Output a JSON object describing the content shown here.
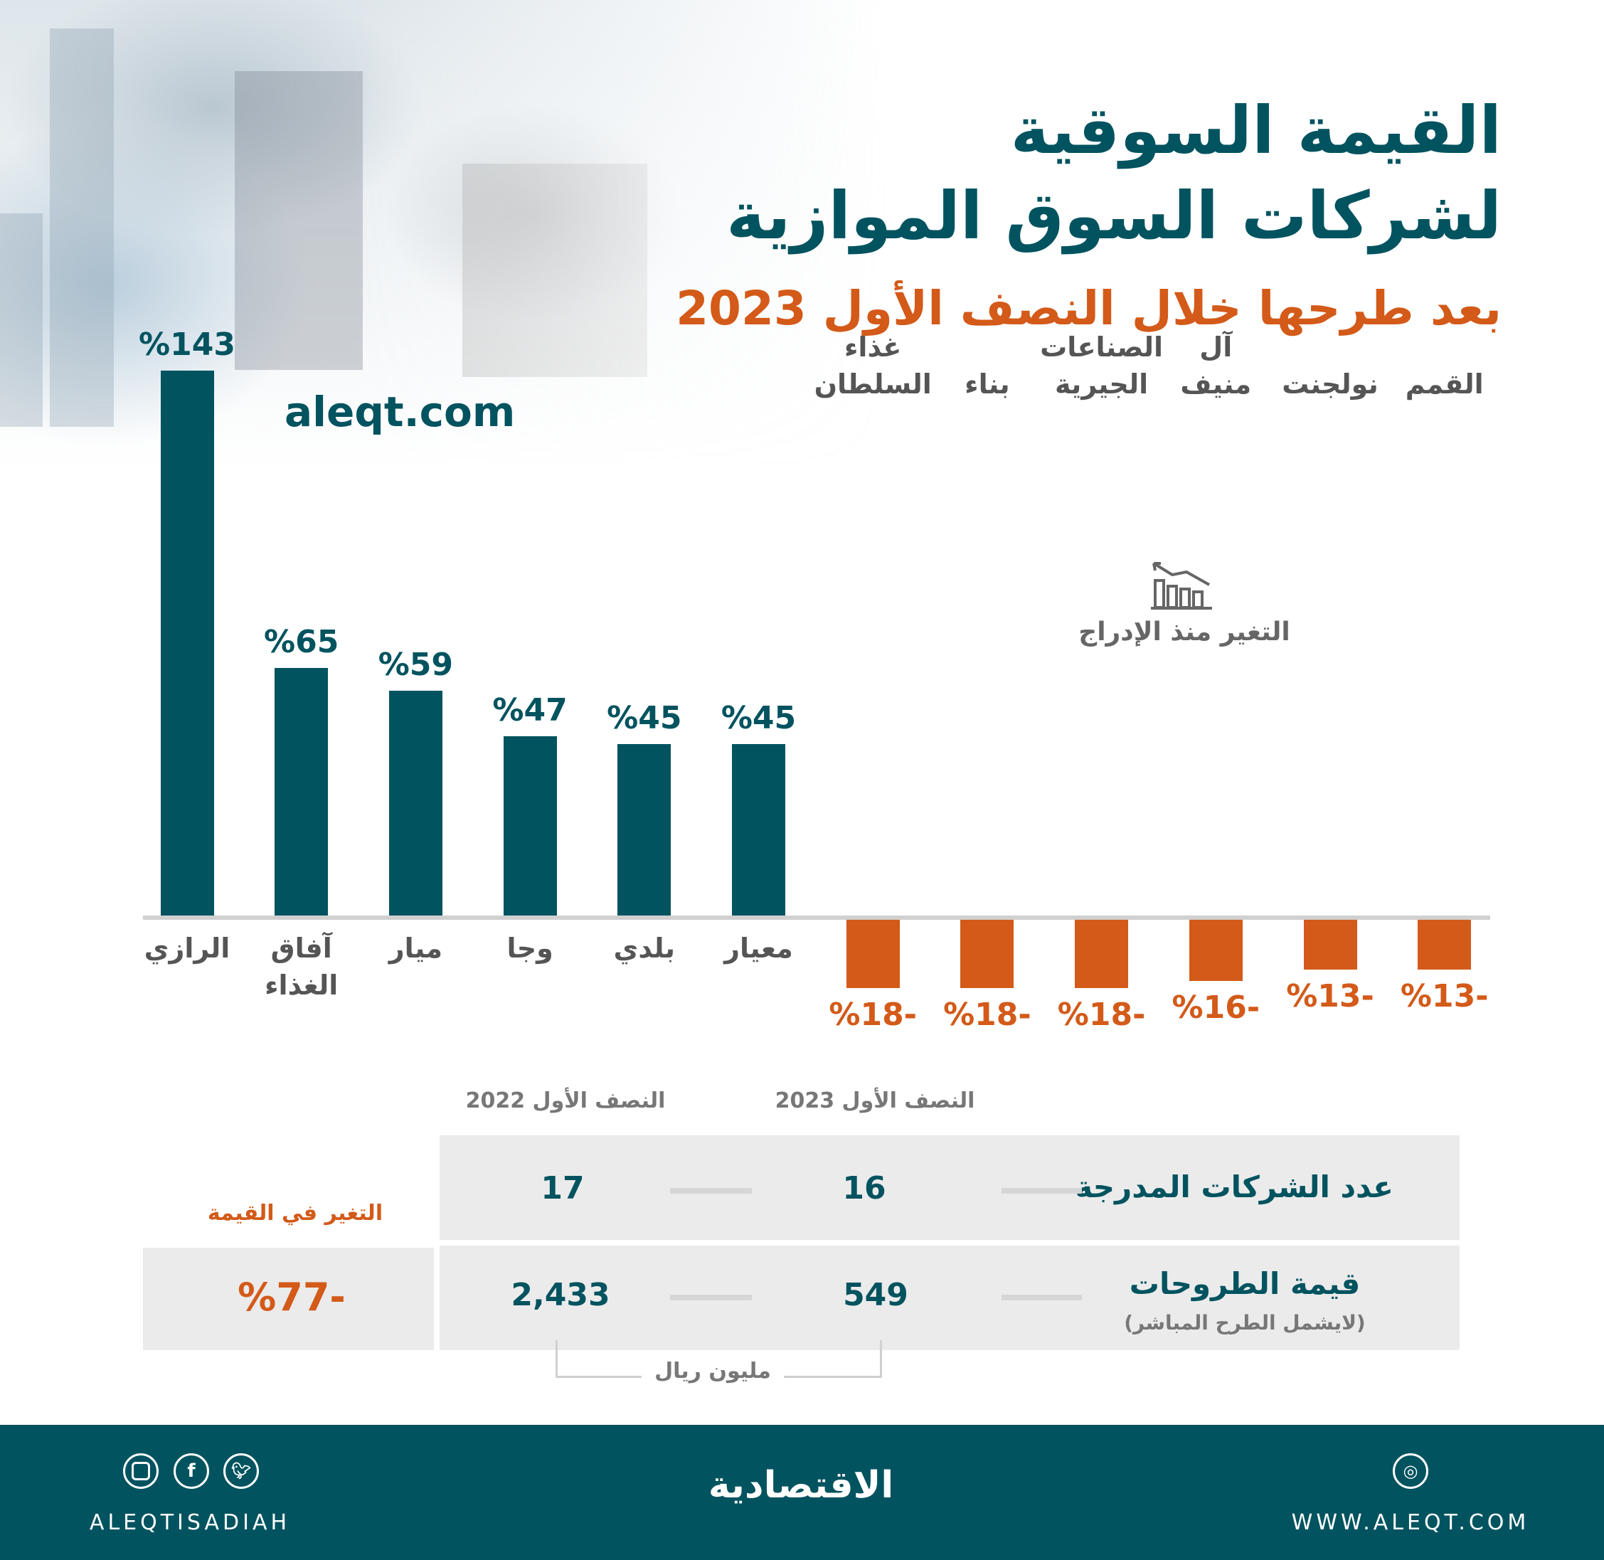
{
  "header": {
    "title_line1": "القيمة السوقية",
    "title_line2": "لشركات السوق الموازية",
    "subtitle": "بعد طرحها خلال النصف الأول 2023",
    "site": "aleqt.com"
  },
  "legend": {
    "icon": "chart-decline-icon",
    "label": "التغير منذ الإدراج"
  },
  "colors": {
    "positive": "#00535f",
    "negative": "#d35a19",
    "footer": "#00535f"
  },
  "chart_data": {
    "type": "bar",
    "title": "القيمة السوقية لشركات السوق الموازية بعد طرحها خلال النصف الأول 2023",
    "ylabel": "التغير منذ الإدراج (%)",
    "categories": [
      "الرازي",
      "آفاق\nالغذاء",
      "ميار",
      "وجا",
      "بلدي",
      "معيار",
      "غذاء\nالسلطان",
      "بناء",
      "الصناعات\nالجيرية",
      "آل\nمنيف",
      "نولجنت",
      "القمم"
    ],
    "values": [
      143,
      65,
      59,
      47,
      45,
      45,
      -18,
      -18,
      -18,
      -16,
      -13,
      -13
    ],
    "ylim": [
      -18,
      143
    ],
    "grid": false
  },
  "table": {
    "col_2022": "النصف الأول  2022",
    "col_2023": "النصف الأول  2023",
    "rows": [
      {
        "label": "عدد الشركات المدرجة",
        "v2023": "16",
        "v2022": "17"
      },
      {
        "label": "قيمة الطروحات",
        "note": "(لايشمل الطرح المباشر)",
        "v2023": "549",
        "v2022": "2,433"
      }
    ],
    "change_label": "التغير في القيمة",
    "change_value": "%77-",
    "unit": "مليون ريال"
  },
  "footer": {
    "handle": "ALEQTISADIAH",
    "logo": "الاقتصادية",
    "url": "WWW.ALEQT.COM",
    "social": [
      "instagram-icon",
      "facebook-icon",
      "twitter-icon"
    ]
  }
}
